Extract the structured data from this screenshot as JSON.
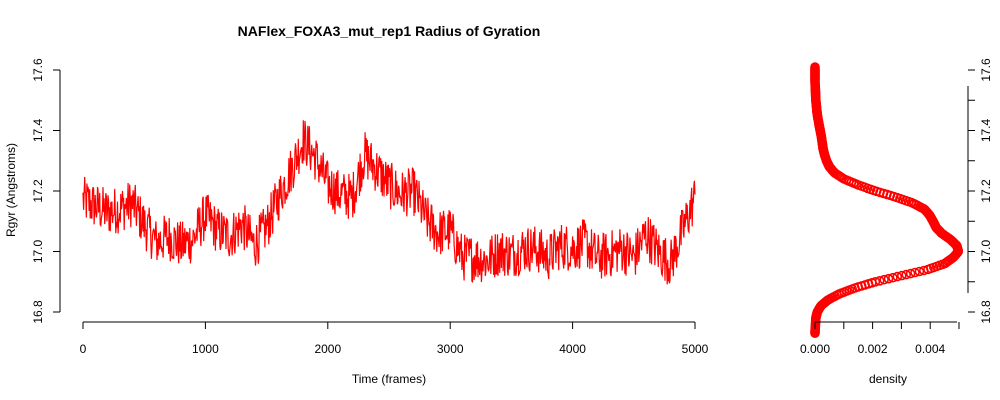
{
  "chart_data": [
    {
      "type": "line",
      "title": "NAFlex_FOXA3_mut_rep1 Radius of Gyration",
      "xlabel": "Time (frames)",
      "ylabel": "Rgyr (Angstroms)",
      "xlim": [
        0,
        5000
      ],
      "ylim": [
        16.8,
        17.6
      ],
      "x_ticks": [
        "0",
        "1000",
        "2000",
        "3000",
        "4000",
        "5000"
      ],
      "y_ticks": [
        "16.8",
        "17.0",
        "17.2",
        "17.4",
        "17.6"
      ],
      "series": [
        {
          "color": "#ff0000",
          "x": [
            0,
            100,
            200,
            300,
            400,
            500,
            600,
            700,
            800,
            900,
            1000,
            1100,
            1200,
            1300,
            1400,
            1500,
            1600,
            1700,
            1800,
            1900,
            2000,
            2100,
            2200,
            2300,
            2400,
            2500,
            2600,
            2700,
            2800,
            2900,
            3000,
            3100,
            3200,
            3300,
            3400,
            3500,
            3600,
            3700,
            3800,
            3900,
            4000,
            4100,
            4200,
            4300,
            4400,
            4500,
            4600,
            4700,
            4800,
            4900,
            5000
          ],
          "y": [
            17.17,
            17.15,
            17.13,
            17.14,
            17.16,
            17.09,
            17.03,
            17.05,
            17.02,
            17.04,
            17.12,
            17.07,
            17.05,
            17.09,
            17.02,
            17.08,
            17.18,
            17.27,
            17.37,
            17.31,
            17.22,
            17.19,
            17.18,
            17.32,
            17.27,
            17.22,
            17.19,
            17.2,
            17.11,
            17.06,
            17.07,
            16.98,
            16.98,
            16.97,
            17.0,
            16.99,
            17.01,
            17.01,
            16.98,
            17.02,
            17.01,
            17.03,
            16.98,
            16.99,
            17.01,
            16.98,
            17.06,
            17.0,
            16.96,
            17.07,
            17.18
          ]
        }
      ]
    },
    {
      "type": "line",
      "xlabel": "density",
      "ylabel": "",
      "xlim": [
        0,
        0.005
      ],
      "ylim": [
        16.8,
        17.6
      ],
      "x_ticks": [
        "0.000",
        "0.002",
        "0.004"
      ],
      "y_ticks": [
        "16.8",
        "17.0",
        "17.2",
        "17.4",
        "17.6"
      ],
      "series": [
        {
          "color": "#ff0000",
          "y": [
            16.73,
            16.75,
            16.78,
            16.8,
            16.82,
            16.84,
            16.86,
            16.88,
            16.9,
            16.92,
            16.94,
            16.96,
            16.98,
            17.0,
            17.02,
            17.04,
            17.06,
            17.08,
            17.1,
            17.12,
            17.14,
            17.16,
            17.18,
            17.2,
            17.22,
            17.24,
            17.26,
            17.28,
            17.3,
            17.32,
            17.34,
            17.36,
            17.38,
            17.4,
            17.42,
            17.44,
            17.46,
            17.48,
            17.5,
            17.52,
            17.54,
            17.56,
            17.58,
            17.6,
            17.61
          ],
          "x": [
            0.0,
            1e-05,
            3e-05,
            8e-05,
            0.0002,
            0.00045,
            0.00085,
            0.0014,
            0.0021,
            0.003,
            0.0039,
            0.0045,
            0.0048,
            0.00498,
            0.00492,
            0.0047,
            0.0044,
            0.0042,
            0.0041,
            0.00398,
            0.0038,
            0.0034,
            0.0028,
            0.0021,
            0.0015,
            0.001,
            0.00068,
            0.0005,
            0.0004,
            0.00033,
            0.00028,
            0.00025,
            0.00022,
            0.00018,
            0.00014,
            0.0001,
            7e-05,
            5e-05,
            3e-05,
            2e-05,
            1e-05,
            0.0,
            0.0,
            0.0,
            0.0
          ]
        }
      ]
    }
  ]
}
